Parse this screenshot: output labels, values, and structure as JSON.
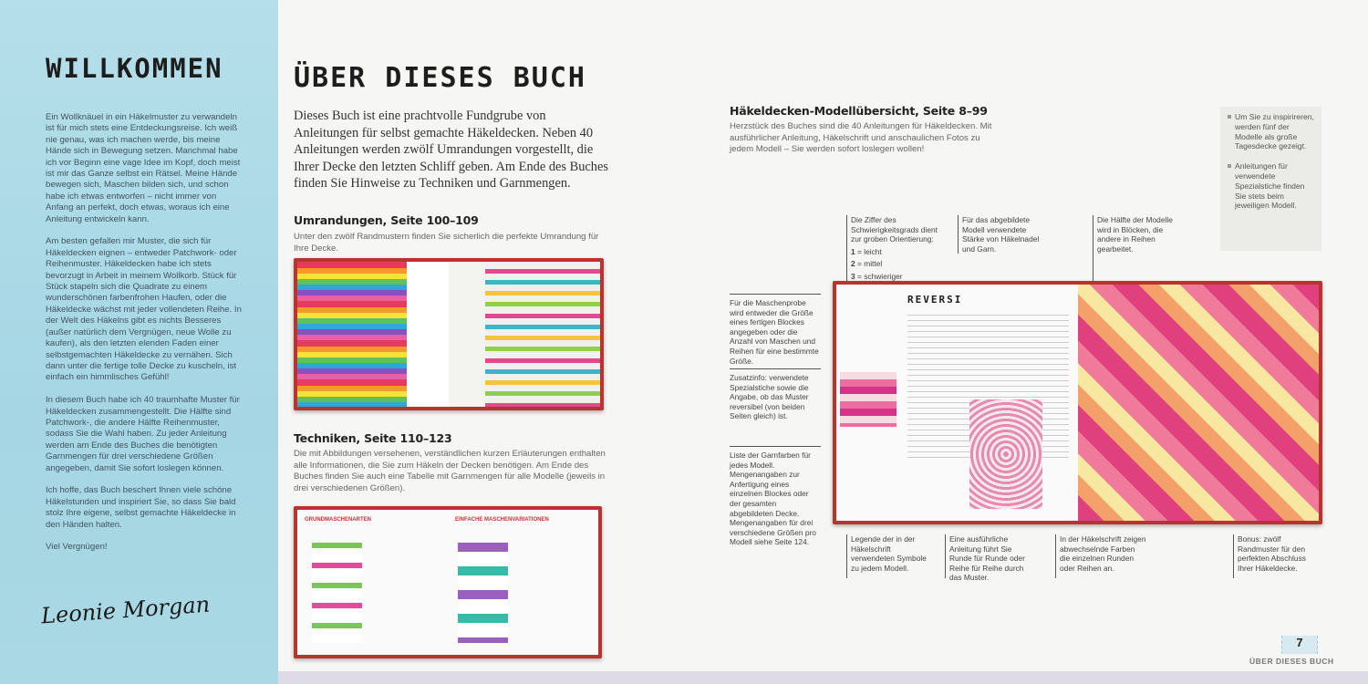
{
  "left_page": {
    "title": "WILLKOMMEN",
    "paragraphs": [
      "Ein Wollknäuel in ein Häkelmuster zu verwandeln ist für mich stets eine Entdeckungsreise. Ich weiß nie genau, was ich machen werde, bis meine Hände sich in Bewegung setzen. Manchmal habe ich vor Beginn eine vage Idee im Kopf, doch meist ist mir das Ganze selbst ein Rätsel. Meine Hände bewegen sich, Maschen bilden sich, und schon habe ich etwas entworfen – nicht immer von Anfang an perfekt, doch etwas, woraus ich eine Anleitung entwickeln kann.",
      "Am besten gefallen mir Muster, die sich für Häkeldecken eignen – entweder Patchwork- oder Reihenmuster. Häkeldecken habe ich stets bevorzugt in Arbeit in meinem Wollkorb. Stück für Stück stapeln sich die Quadrate zu einem wunderschönen farbenfrohen Haufen, oder die Häkeldecke wächst mit jeder vollendeten Reihe. In der Welt des Häkelns gibt es nichts Besseres (außer natürlich dem Vergnügen, neue Wolle zu kaufen), als den letzten elenden Faden einer selbstgemachten Häkeldecke zu vernähen. Sich dann unter die fertige tolle Decke zu kuscheln, ist einfach ein himmlisches Gefühl!",
      "In diesem Buch habe ich 40 traumhafte Muster für Häkeldecken zusammengestellt. Die Hälfte sind Patchwork-, die andere Hälfte Reihenmuster, sodass Sie die Wahl haben. Zu jeder Anleitung werden am Ende des Buches die benötigten Garnmengen für drei verschiedene Größen angegeben, damit Sie sofort loslegen können.",
      "Ich hoffe, das Buch beschert Ihnen viele schöne Häkelstunden und inspiriert Sie, so dass Sie bald stolz Ihre eigene, selbst gemachte Häkeldecke in den Händen halten.",
      "Viel Vergnügen!"
    ],
    "signature": "Leonie Morgan"
  },
  "middle": {
    "title": "ÜBER DIESES BUCH",
    "intro": "Dieses Buch ist eine prachtvolle Fundgrube von Anleitungen für selbst gemachte Häkeldecken. Neben 40 Anleitungen werden zwölf Umrandungen vorgestellt, die Ihrer Decke den letzten Schliff geben. Am Ende des Buches finden Sie Hinweise zu Techniken und Garnmengen.",
    "sections": [
      {
        "heading": "Umrandungen, Seite 100–109",
        "text": "Unter den zwölf Randmustern finden Sie sicherlich die perfekte Umrandung für Ihre Decke."
      },
      {
        "heading": "Techniken, Seite 110–123",
        "text": "Die mit Abbildungen versehenen, verständlichen kurzen Erläuterungen enthalten alle Informationen, die Sie zum Häkeln der Decken benötigen. Am Ende des Buches finden Sie auch eine Tabelle mit Garnmengen für alle Modelle (jeweils in drei verschiedenen Größen)."
      }
    ],
    "technique_pages": {
      "left": "GRUNDMASCHENARTEN",
      "right": "EINFACHE MASCHENVARIATIONEN"
    }
  },
  "right_page": {
    "heading": "Häkeldecken-Modellübersicht, Seite 8–99",
    "text": "Herzstück des Buches sind die 40 Anleitungen für Häkeldecken. Mit ausführlicher Anleitung, Häkelschrift und anschaulichen Fotos zu jedem Modell – Sie werden sofort loslegen wollen!",
    "sidebox": [
      "Um Sie zu inspirireren, werden fünf der Modelle als große Tagesdecke gezeigt.",
      "Anleitungen für verwendete Spezialstiche finden Sie stets beim jeweiligen Modell."
    ],
    "callouts": {
      "difficulty": "Die Ziffer des Schwierigkeitsgrads dient zur groben Orientierung:",
      "levels": [
        {
          "n": "1",
          "label": "= leicht"
        },
        {
          "n": "2",
          "label": "= mittel"
        },
        {
          "n": "3",
          "label": "= schwieriger"
        }
      ],
      "hook": "Für das abgebildete Modell verwendete Stärke von Häkelnadel und Garn.",
      "blocks": "Die Hälfte der Modelle wird in Blöcken, die andere in Reihen gearbeitet.",
      "gauge": "Für die Maschenprobe wird entweder die Größe eines fertigen Blockes angegeben oder die Anzahl von Maschen und Reihen für eine bestimmte Größe.",
      "extra": "Zusatzinfo: verwendete Spezialstiche sowie die Angabe, ob das Muster reversibel (von beiden Seiten gleich) ist.",
      "colors": "Liste der Garnfarben für jedes Modell. Mengenangaben zur Anfertigung eines einzelnen Blockes oder der gesamten abgebildeten Decke. Mengenangaben für drei verschiedene Größen pro Modell siehe Seite 124.",
      "legend": "Legende der in der Häkelschrift verwendeten Symbole zu jedem Modell.",
      "instructions": "Eine ausführliche Anleitung führt Sie Runde für Runde oder Reihe für Reihe durch das Muster.",
      "chart_colors": "In der Häkelschrift zeigen abwechselnde Farben die einzelnen Runden oder Reihen an.",
      "bonus": "Bonus: zwölf Randmuster für den perfekten Abschluss Ihrer Häkeldecke."
    },
    "sample_page_title": "REVERSI",
    "page_number": "7",
    "footer": "ÜBER DIESES BUCH"
  }
}
